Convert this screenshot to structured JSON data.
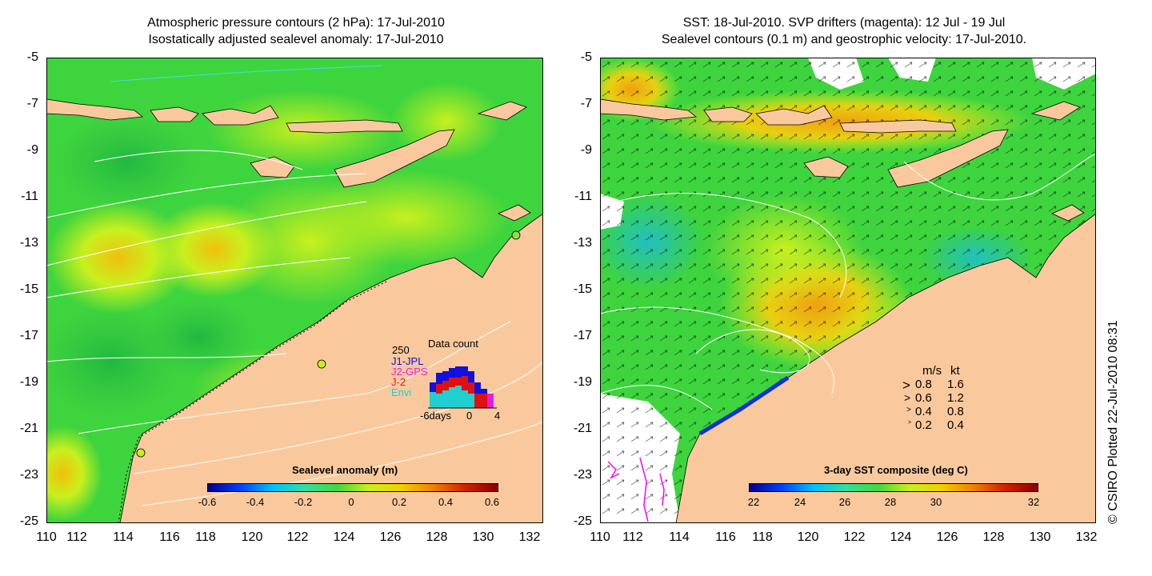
{
  "left_panel": {
    "title_line1": "Atmospheric pressure contours (2 hPa): 17-Jul-2010",
    "title_line2": "Isostatically adjusted sealevel anomaly: 17-Jul-2010",
    "colorbar_title": "Sealevel anomaly (m)",
    "colorbar_ticks": [
      "-0.6",
      "-0.4",
      "-0.2",
      "0",
      "0.2",
      "0.4",
      "0.6"
    ],
    "inset": {
      "title": "Data count",
      "ymax_label": "250",
      "series": [
        "J1-JPL",
        "J2-GPS",
        "J-2",
        "Envi"
      ],
      "series_colors": [
        "#1010e0",
        "#e020e0",
        "#e01010",
        "#20d0d0"
      ],
      "x_label_left": "-6days",
      "x_label_mid": "0",
      "x_label_right": "4"
    }
  },
  "right_panel": {
    "title_line1": "SST: 18-Jul-2010. SVP drifters (magenta): 12 Jul - 19 Jul",
    "title_line2": "Sealevel contours (0.1 m) and geostrophic velocity: 17-Jul-2010.",
    "colorbar_title": "3-day SST composite (deg C)",
    "colorbar_ticks": [
      "22",
      "24",
      "26",
      "28",
      "30",
      "32"
    ],
    "velocity_legend": {
      "header_ms": "m/s",
      "header_kt": "kt",
      "rows": [
        {
          "ms": "0.8",
          "kt": "1.6"
        },
        {
          "ms": "0.6",
          "kt": "1.2"
        },
        {
          "ms": "0.4",
          "kt": "0.8"
        },
        {
          "ms": "0.2",
          "kt": "0.4"
        }
      ]
    }
  },
  "axes": {
    "y_ticks": [
      "-5",
      "-7",
      "-9",
      "-11",
      "-13",
      "-15",
      "-17",
      "-19",
      "-21",
      "-23",
      "-25"
    ],
    "x_ticks": [
      "110",
      "112",
      "114",
      "116",
      "118",
      "120",
      "122",
      "124",
      "126",
      "128",
      "130",
      "132"
    ]
  },
  "credit": "© CSIRO Plotted 22-Jul-2010 08:31",
  "colors": {
    "land": "#f9c99d",
    "ocean_green": "#3ed43e",
    "ocean_yellow": "#c8f01e",
    "ocean_orange": "#f0b40c",
    "contour": "#ffffff",
    "drifter": "#ff00ff"
  }
}
